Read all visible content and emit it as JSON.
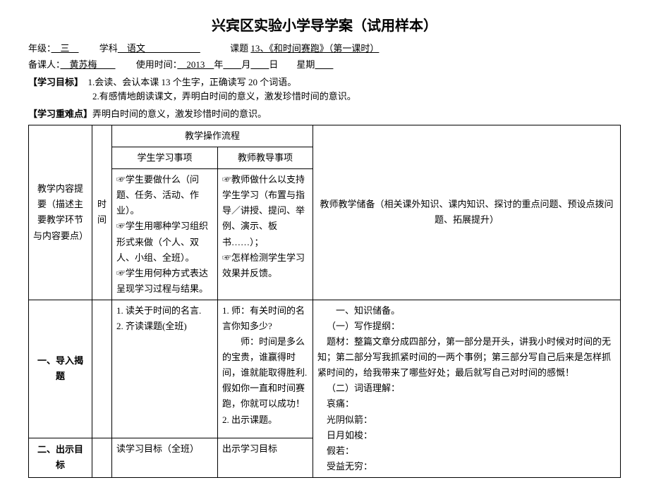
{
  "title": "兴宾区实验小学导学案（试用样本）",
  "meta": {
    "gradeLabel": "年级：",
    "gradeValue": "　三　",
    "subjectLabel": "学科",
    "subjectValue": "　语文　　　　　　",
    "topicLabel": "课题",
    "topicValue": "13、《和时间赛跑》（第一课时）",
    "preparerLabel": "备课人：",
    "preparerValue": "　黄苏梅　　",
    "useTimeLabel": "使用时间：",
    "useYear": "　2013　",
    "yearLabel": "年",
    "monthBlank": "　　",
    "monthLabel": "月",
    "dayBlank": "　　",
    "dayLabel": "日　　星期",
    "weekBlank": "　　"
  },
  "goalsLabel": "【学习目标】",
  "goal1": "1.会读、会认本课 13 个生字，正确读写 20 个词语。",
  "goal2": "2.有感情地朗读课文，弄明白时间的意义，激发珍惜时间的意识。",
  "difficultyLabel": "【学习重难点】",
  "difficultyText": "弄明白时间的意义，激发珍惜时间的意识。",
  "table": {
    "header": {
      "contentOutline": "教学内容提要（描述主要教学环节与内容要点）",
      "time": "时间",
      "procTitle": "教学操作流程",
      "studentTitle": "学生学习事项",
      "teacherTitle": "教师教导事项",
      "studentDesc1": "☞学生要做什么（问题、任务、活动、作业）。",
      "studentDesc2": "☞学生用哪种学习组织形式来做（个人、双人、小组、全班）。",
      "studentDesc3": "☞学生用何种方式表达呈现学习过程与结果。",
      "teacherDesc1": "☞教师做什么以支持学生学习（布置与指导／讲授、提问、举例、演示、板书……）；",
      "teacherDesc2": "☞怎样检测学生学习效果并反馈。",
      "prepTitle": "教师教学储备（相关课外知识、课内知识、探讨的重点问题、预设点拨问题、拓展提升）"
    },
    "row1": {
      "label": "一、导入揭题",
      "student": "1. 读关于时间的名言.\n2. 齐读课题(全班)",
      "teacher": "1. 师：有关时间的名言你知多少?\n　　师：时间是多么的宝贵，谁赢得时间，谁就能取得胜利. 假如你一直和时间赛跑，你就可以成功！\n2. 出示课题。"
    },
    "row2": {
      "label": "二、出示目标",
      "student": "读学习目标（全班）",
      "teacher": "出示学习目标"
    },
    "prep": {
      "p0": "一、知识储备。",
      "p1": "（一）写作提纲：",
      "p2": "题材：整篇文章分成四部分，第一部分是开头，讲我小时候对时间的无知；第二部分写我抓紧时间的一两个事例；第三部分写自己后来是怎样抓紧时间的，给我带来了哪些好处；最后就写自己对时间的感慨！",
      "p3": "（二）词语理解：",
      "w1": "哀痛：",
      "w2": "光阴似箭：",
      "w3": "日月如梭：",
      "w4": "假若：",
      "w5": "受益无穷："
    }
  }
}
